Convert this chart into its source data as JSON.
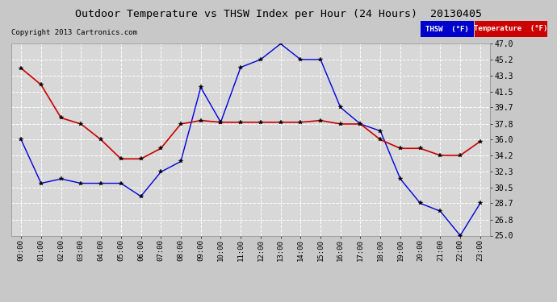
{
  "title": "Outdoor Temperature vs THSW Index per Hour (24 Hours)  20130405",
  "copyright": "Copyright 2013 Cartronics.com",
  "background_color": "#c8c8c8",
  "plot_background_color": "#d8d8d8",
  "grid_color": "#ffffff",
  "hours": [
    "00:00",
    "01:00",
    "02:00",
    "03:00",
    "04:00",
    "05:00",
    "06:00",
    "07:00",
    "08:00",
    "09:00",
    "10:00",
    "11:00",
    "12:00",
    "13:00",
    "14:00",
    "15:00",
    "16:00",
    "17:00",
    "18:00",
    "19:00",
    "20:00",
    "21:00",
    "22:00",
    "23:00"
  ],
  "thsw": [
    36.0,
    31.0,
    31.5,
    31.0,
    31.0,
    31.0,
    29.5,
    32.3,
    33.5,
    42.0,
    38.0,
    44.3,
    45.2,
    47.0,
    45.2,
    45.2,
    39.7,
    37.8,
    37.0,
    31.5,
    28.7,
    27.8,
    25.0,
    28.7
  ],
  "temperature": [
    44.2,
    42.3,
    38.5,
    37.8,
    36.0,
    33.8,
    33.8,
    35.0,
    37.8,
    38.2,
    38.0,
    38.0,
    38.0,
    38.0,
    38.0,
    38.2,
    37.8,
    37.8,
    36.0,
    35.0,
    35.0,
    34.2,
    34.2,
    35.8
  ],
  "thsw_color": "#0000dd",
  "temp_color": "#cc0000",
  "ylim_min": 25.0,
  "ylim_max": 47.0,
  "yticks": [
    25.0,
    26.8,
    28.7,
    30.5,
    32.3,
    34.2,
    36.0,
    37.8,
    39.7,
    41.5,
    43.3,
    45.2,
    47.0
  ],
  "legend_thsw_bg": "#0000cc",
  "legend_temp_bg": "#cc0000",
  "legend_thsw_label": "THSW  (°F)",
  "legend_temp_label": "Temperature  (°F)"
}
